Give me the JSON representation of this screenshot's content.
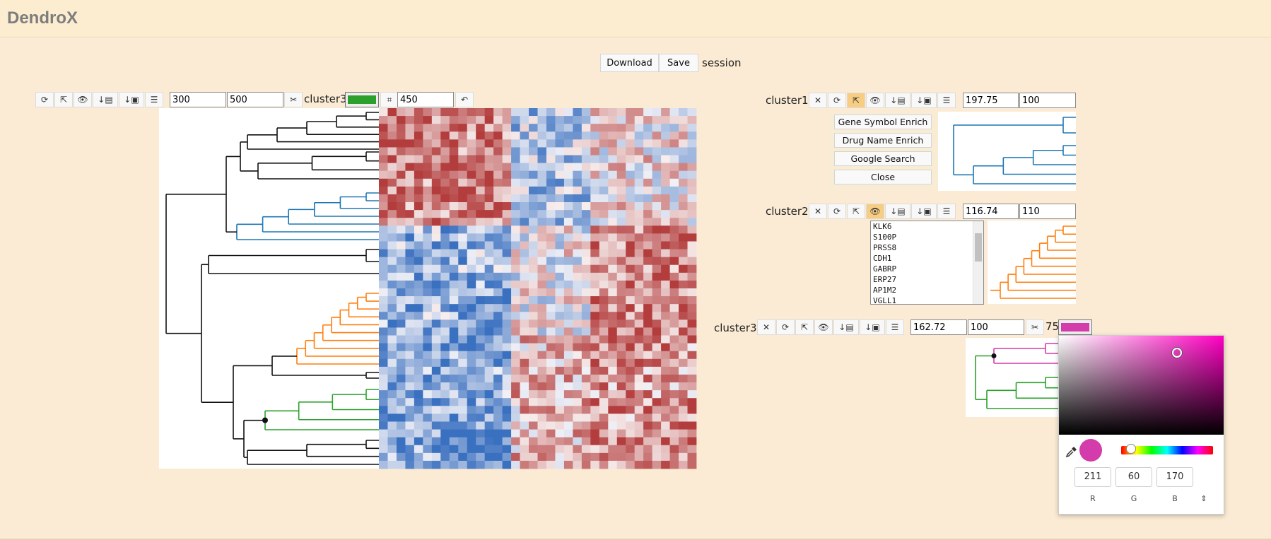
{
  "app": {
    "title": "DendroX"
  },
  "session": {
    "download_label": "Download",
    "save_label": "Save",
    "label": "session"
  },
  "main": {
    "threshold_a": "300",
    "threshold_b": "500",
    "current_cluster": "cluster3",
    "current_color": "#2ca02c",
    "crop_size": "450"
  },
  "clusters": [
    {
      "name": "cluster1",
      "color": "#1f77b4",
      "height": "197.75",
      "size": "100",
      "menu": [
        "Gene Symbol Enrich",
        "Drug Name Enrich",
        "Google Search",
        "Close"
      ]
    },
    {
      "name": "cluster2",
      "color": "#ff7f0e",
      "height": "116.74",
      "size": "110",
      "genes": [
        "KLK6",
        "S100P",
        "PRSS8",
        "CDH1",
        "GABRP",
        "ERP27",
        "AP1M2",
        "VGLL1"
      ]
    },
    {
      "name": "cluster3",
      "color": "#d33caa",
      "height": "162.72",
      "size": "100",
      "cut": "75"
    }
  ],
  "color_picker": {
    "r": "211",
    "g": "60",
    "b": "170",
    "r_label": "R",
    "g_label": "G",
    "b_label": "B",
    "hue_color": "#ff00c3"
  },
  "icons": {
    "refresh": "refresh-icon",
    "expand": "open-new-icon",
    "view": "eye-icon",
    "download_text": "download-text-icon",
    "download_image": "download-image-icon",
    "list": "list-icon",
    "cut": "scissors-icon",
    "crop": "crop-icon",
    "undo": "undo-icon",
    "close": "close-icon",
    "eyedropper": "eyedropper-icon"
  }
}
